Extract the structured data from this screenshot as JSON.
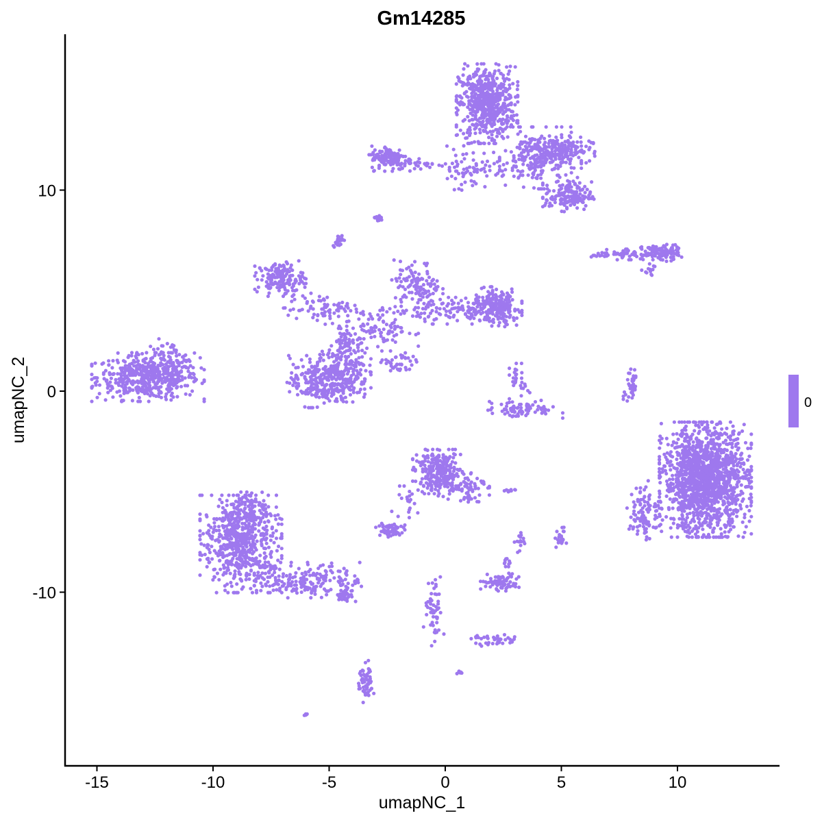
{
  "chart_data": {
    "type": "scatter",
    "title": "Gm14285",
    "xlabel": "umapNC_1",
    "ylabel": "umapNC_2",
    "xlim": [
      -16.4,
      14.4
    ],
    "ylim": [
      -18.6,
      17.7
    ],
    "xticks": [
      -15,
      -10,
      -5,
      0,
      5,
      10
    ],
    "yticks": [
      -10,
      0,
      10
    ],
    "grid": false,
    "point_color": "#9E78EE",
    "legend": {
      "position": "right",
      "labels": [
        "0"
      ],
      "color": "#9E78EE"
    },
    "clusters": [
      {
        "x": -12.8,
        "y": 0.7,
        "sx": 1.1,
        "sy": 0.55,
        "n": 500
      },
      {
        "x": -11.9,
        "y": 1.5,
        "sx": 0.5,
        "sy": 0.5,
        "n": 60
      },
      {
        "x": 1.8,
        "y": 14.3,
        "sx": 0.6,
        "sy": 0.9,
        "n": 600
      },
      {
        "x": 4.1,
        "y": 11.6,
        "sx": 0.8,
        "sy": 0.7,
        "n": 250
      },
      {
        "x": 4.9,
        "y": 12.0,
        "sx": 0.7,
        "sy": 0.3,
        "n": 120
      },
      {
        "x": 5.3,
        "y": 9.7,
        "sx": 0.5,
        "sy": 0.35,
        "n": 150
      },
      {
        "x": -2.4,
        "y": 11.6,
        "sx": 0.4,
        "sy": 0.3,
        "n": 120
      },
      {
        "x": -1.2,
        "y": 11.3,
        "sx": 0.6,
        "sy": 0.15,
        "n": 30
      },
      {
        "x": 1.2,
        "y": 11.1,
        "sx": 0.8,
        "sy": 0.5,
        "n": 80
      },
      {
        "x": -2.9,
        "y": 8.6,
        "sx": 0.1,
        "sy": 0.08,
        "n": 20
      },
      {
        "x": -4.6,
        "y": 7.5,
        "sx": 0.12,
        "sy": 0.15,
        "n": 25
      },
      {
        "x": -7.1,
        "y": 5.6,
        "sx": 0.5,
        "sy": 0.4,
        "n": 150
      },
      {
        "x": -5.3,
        "y": 4.1,
        "sx": 0.8,
        "sy": 0.35,
        "n": 80
      },
      {
        "x": -5.6,
        "y": 0.5,
        "sx": 0.55,
        "sy": 0.6,
        "n": 200
      },
      {
        "x": -4.3,
        "y": 1.0,
        "sx": 0.5,
        "sy": 0.7,
        "n": 220
      },
      {
        "x": -1.2,
        "y": 5.2,
        "sx": 0.5,
        "sy": 0.6,
        "n": 120
      },
      {
        "x": 0.8,
        "y": 4.0,
        "sx": 1.0,
        "sy": 0.3,
        "n": 120
      },
      {
        "x": 2.2,
        "y": 4.2,
        "sx": 0.5,
        "sy": 0.45,
        "n": 200
      },
      {
        "x": -2.7,
        "y": 3.1,
        "sx": 0.7,
        "sy": 0.5,
        "n": 100
      },
      {
        "x": -4.4,
        "y": 2.6,
        "sx": 0.3,
        "sy": 0.4,
        "n": 40
      },
      {
        "x": -2.0,
        "y": 1.3,
        "sx": 0.35,
        "sy": 0.3,
        "n": 40
      },
      {
        "x": 3.3,
        "y": -0.9,
        "sx": 0.8,
        "sy": 0.2,
        "n": 80
      },
      {
        "x": 3.2,
        "y": 0.5,
        "sx": 0.2,
        "sy": 0.4,
        "n": 30
      },
      {
        "x": 8.0,
        "y": 0.3,
        "sx": 0.15,
        "sy": 0.6,
        "n": 40
      },
      {
        "x": 7.7,
        "y": 6.8,
        "sx": 0.7,
        "sy": 0.12,
        "n": 60
      },
      {
        "x": 9.3,
        "y": 6.9,
        "sx": 0.4,
        "sy": 0.2,
        "n": 100
      },
      {
        "x": 8.9,
        "y": 6.0,
        "sx": 0.2,
        "sy": 0.15,
        "n": 12
      },
      {
        "x": 11.2,
        "y": -4.4,
        "sx": 0.9,
        "sy": 1.3,
        "n": 1500
      },
      {
        "x": 8.6,
        "y": -6.0,
        "sx": 0.35,
        "sy": 0.7,
        "n": 100
      },
      {
        "x": -0.3,
        "y": -4.0,
        "sx": 0.5,
        "sy": 0.5,
        "n": 250
      },
      {
        "x": 0.8,
        "y": -4.7,
        "sx": 0.5,
        "sy": 0.4,
        "n": 80
      },
      {
        "x": -2.4,
        "y": -6.9,
        "sx": 0.3,
        "sy": 0.2,
        "n": 60
      },
      {
        "x": -1.7,
        "y": -5.6,
        "sx": 0.4,
        "sy": 0.4,
        "n": 20
      },
      {
        "x": -8.8,
        "y": -7.6,
        "sx": 0.8,
        "sy": 1.1,
        "n": 600
      },
      {
        "x": -8.7,
        "y": -5.9,
        "sx": 0.4,
        "sy": 0.4,
        "n": 100
      },
      {
        "x": -5.8,
        "y": -9.4,
        "sx": 1.1,
        "sy": 0.4,
        "n": 200
      },
      {
        "x": -4.3,
        "y": -10.2,
        "sx": 0.2,
        "sy": 0.15,
        "n": 30
      },
      {
        "x": 2.4,
        "y": -9.5,
        "sx": 0.4,
        "sy": 0.2,
        "n": 80
      },
      {
        "x": 2.2,
        "y": -12.4,
        "sx": 0.5,
        "sy": 0.15,
        "n": 40
      },
      {
        "x": -0.5,
        "y": -11.0,
        "sx": 0.2,
        "sy": 0.8,
        "n": 50
      },
      {
        "x": -3.4,
        "y": -14.5,
        "sx": 0.15,
        "sy": 0.5,
        "n": 60
      },
      {
        "x": 2.7,
        "y": -5.0,
        "sx": 0.15,
        "sy": 0.08,
        "n": 10
      },
      {
        "x": 3.2,
        "y": -7.5,
        "sx": 0.1,
        "sy": 0.3,
        "n": 15
      },
      {
        "x": 4.95,
        "y": -7.3,
        "sx": 0.12,
        "sy": 0.25,
        "n": 20
      },
      {
        "x": 2.6,
        "y": -8.6,
        "sx": 0.1,
        "sy": 0.15,
        "n": 10
      },
      {
        "x": -6.0,
        "y": -16.1,
        "sx": 0.05,
        "sy": 0.05,
        "n": 5
      },
      {
        "x": 0.6,
        "y": -14.0,
        "sx": 0.05,
        "sy": 0.05,
        "n": 6
      }
    ]
  }
}
